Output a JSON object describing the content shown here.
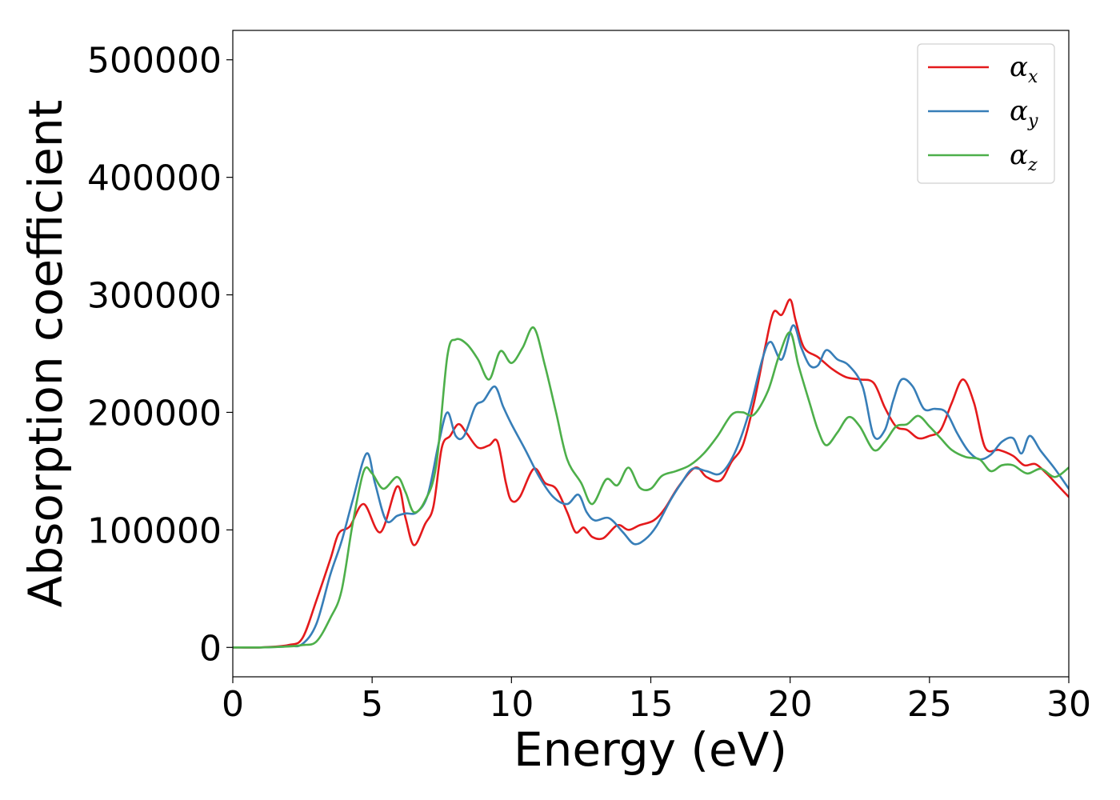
{
  "chart_data": {
    "type": "line",
    "title": "",
    "xlabel": "Energy (eV)",
    "ylabel": "Absorption coefficient",
    "xlim": [
      0,
      30
    ],
    "ylim": [
      -25000,
      525000
    ],
    "xticks": [
      0,
      5,
      10,
      15,
      20,
      25,
      30
    ],
    "yticks": [
      0,
      100000,
      200000,
      300000,
      400000,
      500000
    ],
    "grid": false,
    "legend_position": "top-right",
    "series": [
      {
        "name": "α",
        "subscript": "x",
        "color": "#e41a1c",
        "points": [
          [
            0,
            0
          ],
          [
            1,
            0
          ],
          [
            2,
            2000
          ],
          [
            2.5,
            8000
          ],
          [
            3,
            40000
          ],
          [
            3.5,
            75000
          ],
          [
            3.8,
            97000
          ],
          [
            4.2,
            103000
          ],
          [
            4.7,
            122000
          ],
          [
            5.3,
            98000
          ],
          [
            5.9,
            137000
          ],
          [
            6.2,
            110000
          ],
          [
            6.5,
            87000
          ],
          [
            6.9,
            105000
          ],
          [
            7.2,
            120000
          ],
          [
            7.5,
            170000
          ],
          [
            7.8,
            180000
          ],
          [
            8.1,
            190000
          ],
          [
            8.4,
            182000
          ],
          [
            8.8,
            170000
          ],
          [
            9.2,
            172000
          ],
          [
            9.5,
            175000
          ],
          [
            9.8,
            140000
          ],
          [
            10.0,
            125000
          ],
          [
            10.3,
            128000
          ],
          [
            10.8,
            152000
          ],
          [
            11.2,
            140000
          ],
          [
            11.6,
            135000
          ],
          [
            12.0,
            115000
          ],
          [
            12.3,
            98000
          ],
          [
            12.6,
            102000
          ],
          [
            12.9,
            94000
          ],
          [
            13.3,
            93000
          ],
          [
            13.8,
            104000
          ],
          [
            14.2,
            100000
          ],
          [
            14.6,
            104000
          ],
          [
            15.1,
            108000
          ],
          [
            15.5,
            118000
          ],
          [
            16.0,
            137000
          ],
          [
            16.6,
            153000
          ],
          [
            17.0,
            145000
          ],
          [
            17.5,
            142000
          ],
          [
            17.9,
            158000
          ],
          [
            18.3,
            172000
          ],
          [
            18.7,
            208000
          ],
          [
            19.1,
            255000
          ],
          [
            19.4,
            285000
          ],
          [
            19.7,
            283000
          ],
          [
            20.0,
            296000
          ],
          [
            20.2,
            278000
          ],
          [
            20.5,
            255000
          ],
          [
            21.0,
            247000
          ],
          [
            21.5,
            237000
          ],
          [
            22.0,
            230000
          ],
          [
            22.5,
            228000
          ],
          [
            23.0,
            225000
          ],
          [
            23.4,
            204000
          ],
          [
            23.8,
            188000
          ],
          [
            24.2,
            185000
          ],
          [
            24.6,
            178000
          ],
          [
            25.0,
            180000
          ],
          [
            25.4,
            185000
          ],
          [
            25.8,
            208000
          ],
          [
            26.2,
            228000
          ],
          [
            26.6,
            208000
          ],
          [
            27.0,
            170000
          ],
          [
            27.5,
            168000
          ],
          [
            28.0,
            163000
          ],
          [
            28.4,
            155000
          ],
          [
            28.8,
            156000
          ],
          [
            29.2,
            148000
          ],
          [
            29.6,
            138000
          ],
          [
            30,
            128000
          ]
        ]
      },
      {
        "name": "α",
        "subscript": "y",
        "color": "#377eb8",
        "points": [
          [
            0,
            0
          ],
          [
            1,
            0
          ],
          [
            2,
            1000
          ],
          [
            2.5,
            3000
          ],
          [
            3,
            20000
          ],
          [
            3.5,
            62000
          ],
          [
            3.9,
            90000
          ],
          [
            4.3,
            125000
          ],
          [
            4.8,
            165000
          ],
          [
            5.1,
            140000
          ],
          [
            5.5,
            108000
          ],
          [
            5.9,
            112000
          ],
          [
            6.2,
            114000
          ],
          [
            6.6,
            115000
          ],
          [
            7.0,
            130000
          ],
          [
            7.4,
            175000
          ],
          [
            7.7,
            200000
          ],
          [
            8.0,
            180000
          ],
          [
            8.3,
            180000
          ],
          [
            8.7,
            205000
          ],
          [
            9.0,
            210000
          ],
          [
            9.4,
            222000
          ],
          [
            9.7,
            205000
          ],
          [
            10.0,
            190000
          ],
          [
            10.5,
            168000
          ],
          [
            11.0,
            145000
          ],
          [
            11.5,
            128000
          ],
          [
            12.0,
            122000
          ],
          [
            12.4,
            130000
          ],
          [
            12.7,
            115000
          ],
          [
            13.0,
            108000
          ],
          [
            13.5,
            110000
          ],
          [
            14.0,
            98000
          ],
          [
            14.4,
            88000
          ],
          [
            14.8,
            92000
          ],
          [
            15.2,
            103000
          ],
          [
            15.7,
            125000
          ],
          [
            16.1,
            140000
          ],
          [
            16.5,
            152000
          ],
          [
            17.0,
            150000
          ],
          [
            17.5,
            148000
          ],
          [
            18.0,
            165000
          ],
          [
            18.5,
            198000
          ],
          [
            19.0,
            245000
          ],
          [
            19.3,
            260000
          ],
          [
            19.7,
            245000
          ],
          [
            20.1,
            274000
          ],
          [
            20.4,
            255000
          ],
          [
            20.7,
            240000
          ],
          [
            21.0,
            240000
          ],
          [
            21.3,
            253000
          ],
          [
            21.7,
            245000
          ],
          [
            22.1,
            240000
          ],
          [
            22.6,
            222000
          ],
          [
            23.0,
            180000
          ],
          [
            23.4,
            185000
          ],
          [
            23.7,
            210000
          ],
          [
            24.0,
            228000
          ],
          [
            24.4,
            222000
          ],
          [
            24.8,
            203000
          ],
          [
            25.2,
            203000
          ],
          [
            25.6,
            200000
          ],
          [
            26.0,
            182000
          ],
          [
            26.4,
            167000
          ],
          [
            26.8,
            160000
          ],
          [
            27.2,
            164000
          ],
          [
            27.6,
            175000
          ],
          [
            28.0,
            178000
          ],
          [
            28.3,
            165000
          ],
          [
            28.6,
            180000
          ],
          [
            29.0,
            167000
          ],
          [
            29.5,
            152000
          ],
          [
            30,
            135000
          ]
        ]
      },
      {
        "name": "α",
        "subscript": "z",
        "color": "#4daf4a",
        "points": [
          [
            0,
            0
          ],
          [
            1,
            0
          ],
          [
            2,
            800
          ],
          [
            2.5,
            2000
          ],
          [
            3,
            5000
          ],
          [
            3.5,
            25000
          ],
          [
            3.9,
            48000
          ],
          [
            4.3,
            105000
          ],
          [
            4.7,
            150000
          ],
          [
            5.0,
            148000
          ],
          [
            5.4,
            135000
          ],
          [
            5.9,
            145000
          ],
          [
            6.2,
            132000
          ],
          [
            6.5,
            115000
          ],
          [
            6.9,
            125000
          ],
          [
            7.3,
            155000
          ],
          [
            7.7,
            248000
          ],
          [
            8.0,
            262000
          ],
          [
            8.4,
            258000
          ],
          [
            8.8,
            245000
          ],
          [
            9.2,
            228000
          ],
          [
            9.6,
            252000
          ],
          [
            10.0,
            242000
          ],
          [
            10.4,
            255000
          ],
          [
            10.8,
            272000
          ],
          [
            11.2,
            240000
          ],
          [
            11.6,
            200000
          ],
          [
            12.0,
            160000
          ],
          [
            12.5,
            140000
          ],
          [
            12.9,
            122000
          ],
          [
            13.4,
            143000
          ],
          [
            13.8,
            138000
          ],
          [
            14.2,
            153000
          ],
          [
            14.6,
            136000
          ],
          [
            15.0,
            135000
          ],
          [
            15.4,
            146000
          ],
          [
            15.9,
            150000
          ],
          [
            16.4,
            155000
          ],
          [
            16.9,
            165000
          ],
          [
            17.4,
            180000
          ],
          [
            17.9,
            198000
          ],
          [
            18.3,
            200000
          ],
          [
            18.7,
            198000
          ],
          [
            19.2,
            218000
          ],
          [
            19.6,
            248000
          ],
          [
            20.0,
            268000
          ],
          [
            20.3,
            240000
          ],
          [
            20.7,
            208000
          ],
          [
            21.0,
            185000
          ],
          [
            21.3,
            172000
          ],
          [
            21.7,
            183000
          ],
          [
            22.1,
            196000
          ],
          [
            22.5,
            188000
          ],
          [
            23.0,
            168000
          ],
          [
            23.4,
            175000
          ],
          [
            23.8,
            188000
          ],
          [
            24.2,
            190000
          ],
          [
            24.6,
            197000
          ],
          [
            25.0,
            188000
          ],
          [
            25.4,
            178000
          ],
          [
            25.8,
            168000
          ],
          [
            26.3,
            162000
          ],
          [
            26.8,
            160000
          ],
          [
            27.2,
            150000
          ],
          [
            27.6,
            155000
          ],
          [
            28.0,
            155000
          ],
          [
            28.5,
            148000
          ],
          [
            29.0,
            152000
          ],
          [
            29.5,
            145000
          ],
          [
            30,
            153000
          ]
        ]
      }
    ]
  }
}
